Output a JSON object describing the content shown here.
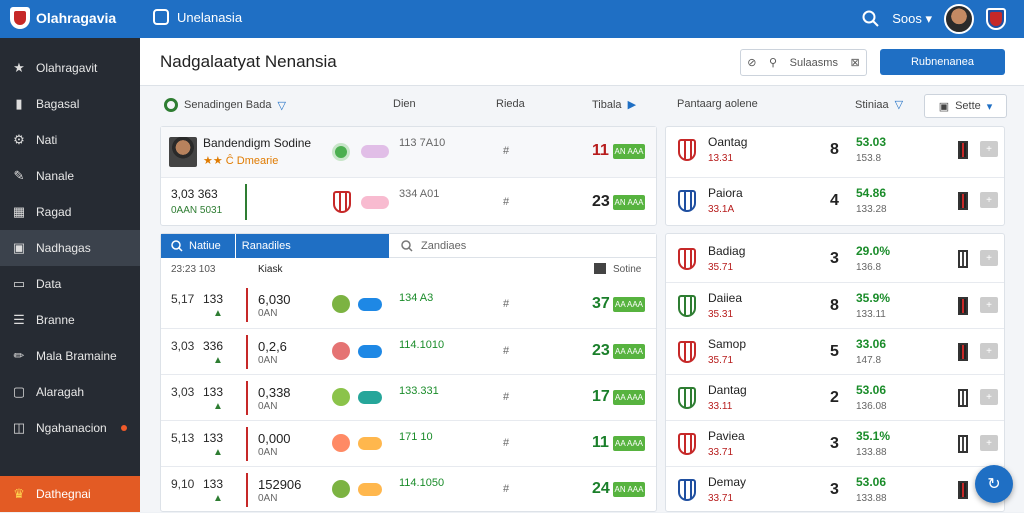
{
  "topbar": {
    "brand": "Olahragavia",
    "app_name": "Unelanasia",
    "user_label": "Soos",
    "bg": "#1f6fc4"
  },
  "sidebar": {
    "items": [
      {
        "label": "Olahragavit",
        "icon": "star-icon"
      },
      {
        "label": "Bagasal",
        "icon": "book-icon"
      },
      {
        "label": "Nati",
        "icon": "gear-icon"
      },
      {
        "label": "Nanale",
        "icon": "brush-icon"
      },
      {
        "label": "Ragad",
        "icon": "grid-icon"
      },
      {
        "label": "Nadhagas",
        "icon": "monitor-icon"
      },
      {
        "label": "Data",
        "icon": "screen-icon"
      },
      {
        "label": "Branne",
        "icon": "list-icon"
      },
      {
        "label": "Mala Bramaine",
        "icon": "pen-icon"
      },
      {
        "label": "Alaragah",
        "icon": "display-icon"
      },
      {
        "label": "Ngahanacion",
        "icon": "frame-icon"
      }
    ],
    "bottom_item": {
      "label": "Dathegnai",
      "icon": "trophy-icon"
    }
  },
  "header": {
    "title": "Nadgalaatyat Nenansia",
    "tools": [
      "⊘",
      "⚲",
      "Sulaasms",
      "⊠"
    ],
    "primary_button": "Rubnenanea"
  },
  "columns": {
    "left": [
      "Senadingen Bada",
      "Dien",
      "Rieda",
      "Tibala"
    ],
    "right": [
      "Pantaarg aolene",
      "Stiniaa",
      "Sette"
    ]
  },
  "featured": [
    {
      "name": "Bandendigm Sodine",
      "sub": "★★ Ĉ Dmearie",
      "code": "113 7A10",
      "hash": "#",
      "score": "11",
      "badge": "AN AAA"
    },
    {
      "name_top": "3,03 363",
      "name_bottom": "0AAN 5031",
      "code": "334 A01",
      "hash": "#",
      "score": "23",
      "badge": "AN AAA"
    }
  ],
  "list_tabs": {
    "active_a": "Natiue",
    "active_b": "Ranadiles",
    "search_placeholder": "Zandiaes"
  },
  "list_head": {
    "left": "23:23 103",
    "mid": "Kiask",
    "right": "Sotine"
  },
  "rows": [
    {
      "a": "5,17",
      "b": "133",
      "c": "6,030",
      "d": "0AN",
      "code": "134 A3",
      "score": "37",
      "badge": "AA AAA"
    },
    {
      "a": "3,03",
      "b": "336",
      "c": "0,2,6",
      "d": "0AN",
      "code": "114.1010",
      "score": "23",
      "badge": "AA AAA"
    },
    {
      "a": "3,03",
      "b": "133",
      "c": "0,338",
      "d": "0AN",
      "code": "133.331",
      "score": "17",
      "badge": "AA AAA"
    },
    {
      "a": "5,13",
      "b": "133",
      "c": "0,000",
      "d": "0AN",
      "code": "171 10",
      "score": "11",
      "badge": "AA AAA"
    },
    {
      "a": "9,10",
      "b": "133",
      "c": "152906",
      "d": "0AN",
      "code": "114.1050",
      "score": "24",
      "badge": "AN AAA"
    }
  ],
  "standings": [
    {
      "team": "Oantag",
      "sub": "13.31",
      "rank": "8",
      "pct": "53.03",
      "pct2": "153.8"
    },
    {
      "team": "Paiora",
      "sub": "33.1A",
      "rank": "4",
      "pct": "54.86",
      "pct2": "133.28"
    },
    {
      "team": "Badiag",
      "sub": "35.71",
      "rank": "3",
      "pct": "29.0%",
      "pct2": "136.8"
    },
    {
      "team": "Daiiea",
      "sub": "35.31",
      "rank": "8",
      "pct": "35.9%",
      "pct2": "133.11"
    },
    {
      "team": "Samop",
      "sub": "35.71",
      "rank": "5",
      "pct": "33.06",
      "pct2": "147.8"
    },
    {
      "team": "Dantag",
      "sub": "33.11",
      "rank": "2",
      "pct": "53.06",
      "pct2": "136.08"
    },
    {
      "team": "Paviea",
      "sub": "33.71",
      "rank": "3",
      "pct": "35.1%",
      "pct2": "133.88"
    },
    {
      "team": "Demay",
      "sub": "33.71",
      "rank": "3",
      "pct": "53.06",
      "pct2": "133.88"
    }
  ]
}
